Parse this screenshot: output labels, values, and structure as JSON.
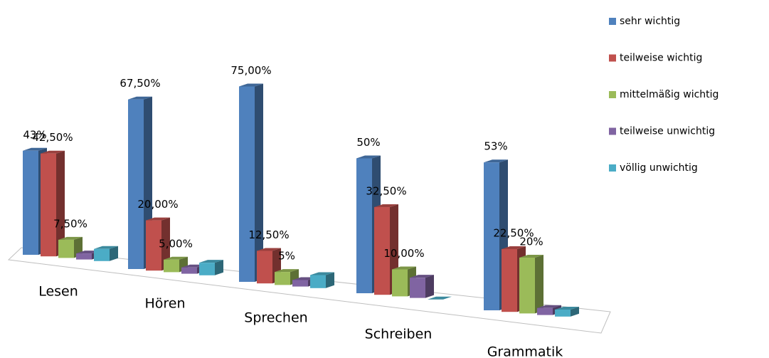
{
  "chart_data": {
    "type": "bar3d",
    "categories": [
      "Lesen",
      "Hören",
      "Sprechen",
      "Schreiben",
      "Grammatik"
    ],
    "series": [
      {
        "name": "sehr wichtig",
        "color": "#4f81bd",
        "values": [
          43,
          67.5,
          75,
          50,
          53
        ],
        "value_labels": [
          "43%",
          "67,50%",
          "75,00%",
          "50%",
          "53%"
        ]
      },
      {
        "name": "teilweise wichtig",
        "color": "#c0504d",
        "values": [
          42.5,
          20,
          12.5,
          32.5,
          22.5
        ],
        "value_labels": [
          "42,50%",
          "20,00%",
          "12,50%",
          "32,50%",
          "22,50%"
        ]
      },
      {
        "name": "mittelmäßig  wichtig",
        "color": "#9bbb59",
        "values": [
          7.5,
          5,
          5,
          10,
          20
        ],
        "value_labels": [
          "7,50%",
          "5,00%",
          "5%",
          "10,00%",
          "20%"
        ]
      },
      {
        "name": "teilweise unwichtig",
        "color": "#8064a2",
        "values": [
          2.5,
          2.5,
          2.5,
          7.5,
          2.5
        ],
        "value_labels": [
          null,
          null,
          null,
          null,
          null
        ]
      },
      {
        "name": "völlig unwichtig",
        "color": "#4bacc6",
        "values": [
          5,
          5,
          5,
          0,
          2.5
        ],
        "value_labels": [
          null,
          null,
          null,
          null,
          null
        ]
      }
    ],
    "legend": "right"
  }
}
